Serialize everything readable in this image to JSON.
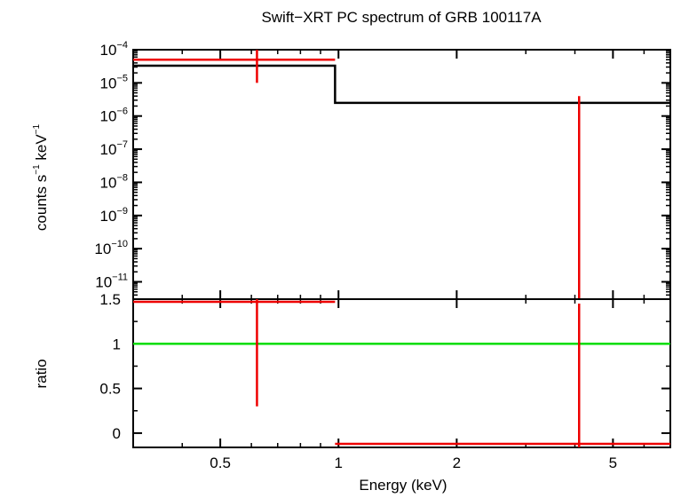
{
  "chart_data": [
    {
      "type": "line",
      "title": "Swift−XRT PC spectrum of GRB 100117A",
      "ylabel_parts": [
        "counts s",
        "−1",
        " keV",
        "−1"
      ],
      "yscale": "log",
      "ylim": [
        3e-12,
        0.0001
      ],
      "yticks": [
        {
          "base": "10",
          "exp": "−4",
          "value": 0.0001
        },
        {
          "base": "10",
          "exp": "−5",
          "value": 1e-05
        },
        {
          "base": "10",
          "exp": "−6",
          "value": 1e-06
        },
        {
          "base": "10",
          "exp": "−7",
          "value": 1e-07
        },
        {
          "base": "10",
          "exp": "−8",
          "value": 1e-08
        },
        {
          "base": "10",
          "exp": "−9",
          "value": 1e-09
        },
        {
          "base": "10",
          "exp": "−10",
          "value": 1e-10
        },
        {
          "base": "10",
          "exp": "−11",
          "value": 1e-11
        }
      ],
      "series": [
        {
          "kind": "model-step",
          "color": "#000000",
          "steps": [
            {
              "x0": 0.3,
              "x1": 0.98,
              "y": 3.3e-05
            },
            {
              "x0": 0.98,
              "x1": 7.0,
              "y": 2.5e-06
            }
          ]
        },
        {
          "kind": "data",
          "color": "#ee0000",
          "points": [
            {
              "x0": 0.3,
              "x1": 0.98,
              "xc": 0.62,
              "y": 5e-05,
              "ylo": 1e-05,
              "yhi": 0.0001
            },
            {
              "x0": 0.98,
              "x1": 7.0,
              "xc": 4.1,
              "y": null,
              "ylo": 3e-12,
              "yhi": 4e-06
            }
          ]
        }
      ]
    },
    {
      "type": "line",
      "xlabel": "Energy (keV)",
      "ylabel": "ratio",
      "xscale": "log",
      "xlim": [
        0.3,
        7.0
      ],
      "ylim": [
        -0.16,
        1.5
      ],
      "xticks": [
        {
          "label": "0.5",
          "value": 0.5
        },
        {
          "label": "1",
          "value": 1
        },
        {
          "label": "2",
          "value": 2
        },
        {
          "label": "5",
          "value": 5
        }
      ],
      "yticks": [
        {
          "label": "1.5",
          "value": 1.5
        },
        {
          "label": "1",
          "value": 1
        },
        {
          "label": "0.5",
          "value": 0.5
        },
        {
          "label": "0",
          "value": 0
        }
      ],
      "series": [
        {
          "kind": "reference-line",
          "color": "#00dd00",
          "y": 1
        },
        {
          "kind": "data",
          "color": "#ee0000",
          "points": [
            {
              "x0": 0.3,
              "x1": 0.98,
              "xc": 0.62,
              "y": 1.47,
              "ylo": 0.3,
              "yhi": 1.5
            },
            {
              "x0": 0.98,
              "x1": 7.0,
              "xc": 4.1,
              "y": -0.12,
              "ylo": -0.16,
              "yhi": 1.45
            }
          ]
        }
      ]
    }
  ]
}
